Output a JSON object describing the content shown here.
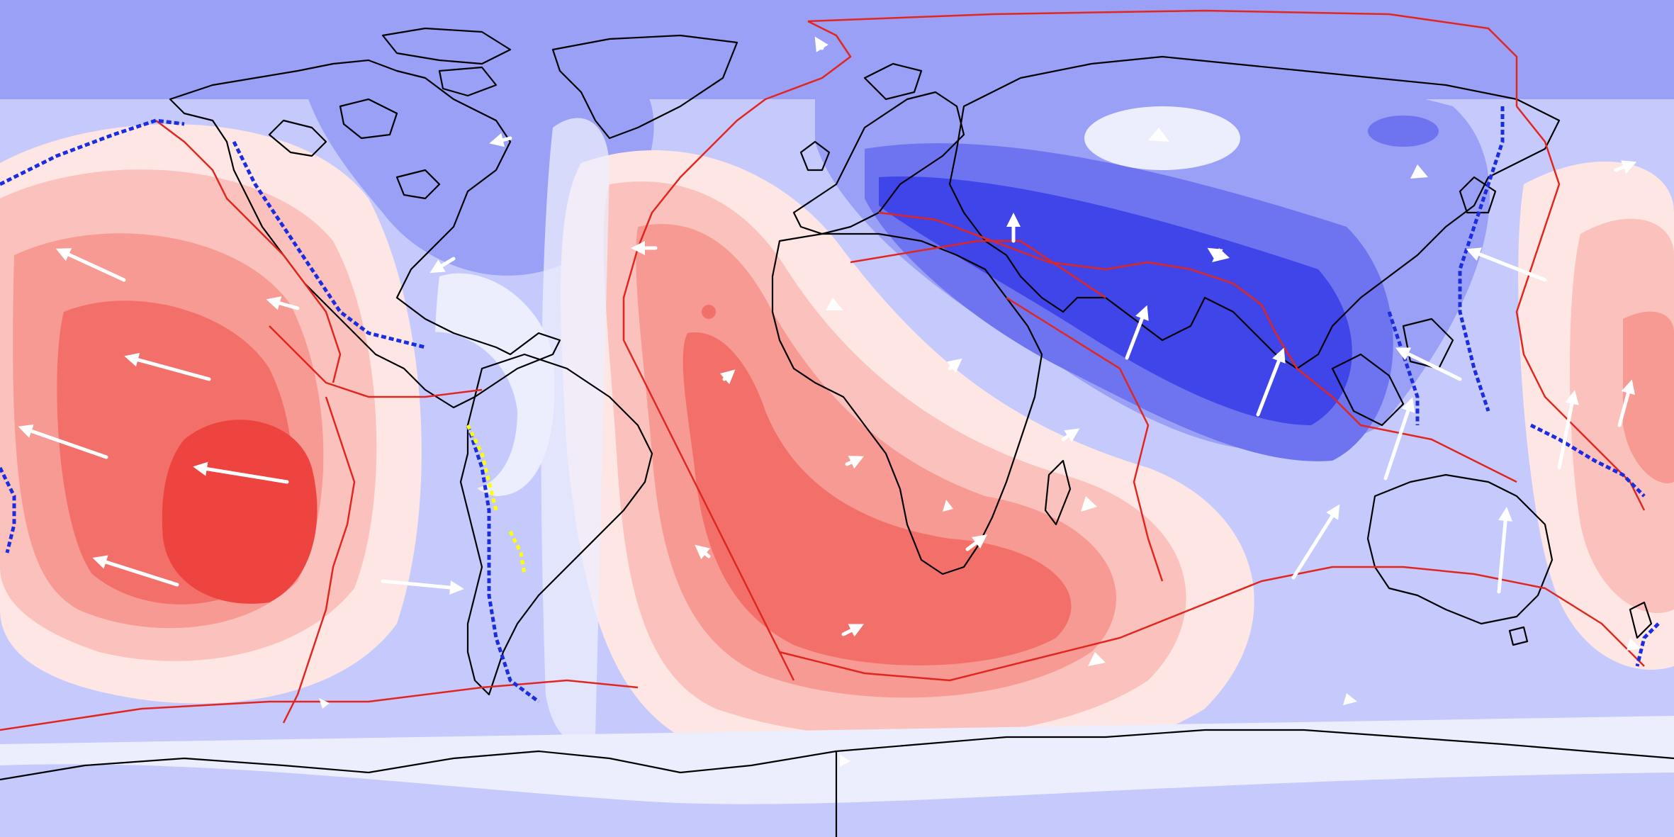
{
  "map": {
    "projection": "equirectangular",
    "center_longitude": 0,
    "colors": {
      "blue_levels": [
        "#eceefd",
        "#c5c9fb",
        "#9aa0f6",
        "#6e74ef",
        "#3f45e8"
      ],
      "red_levels": [
        "#fde6e4",
        "#fbc2bd",
        "#f79a93",
        "#f3706a",
        "#ee4440"
      ],
      "coastline": "#000000",
      "plate_boundary": "#e0261e",
      "subduction_zone": "#1a2de0",
      "subduction_alt": "#ffff00",
      "velocity_arrow": "#ffffff"
    },
    "layers": [
      "contour-field",
      "coastlines",
      "plate-boundaries",
      "subduction-zones",
      "velocity-arrows"
    ],
    "legend": null,
    "title": null
  }
}
